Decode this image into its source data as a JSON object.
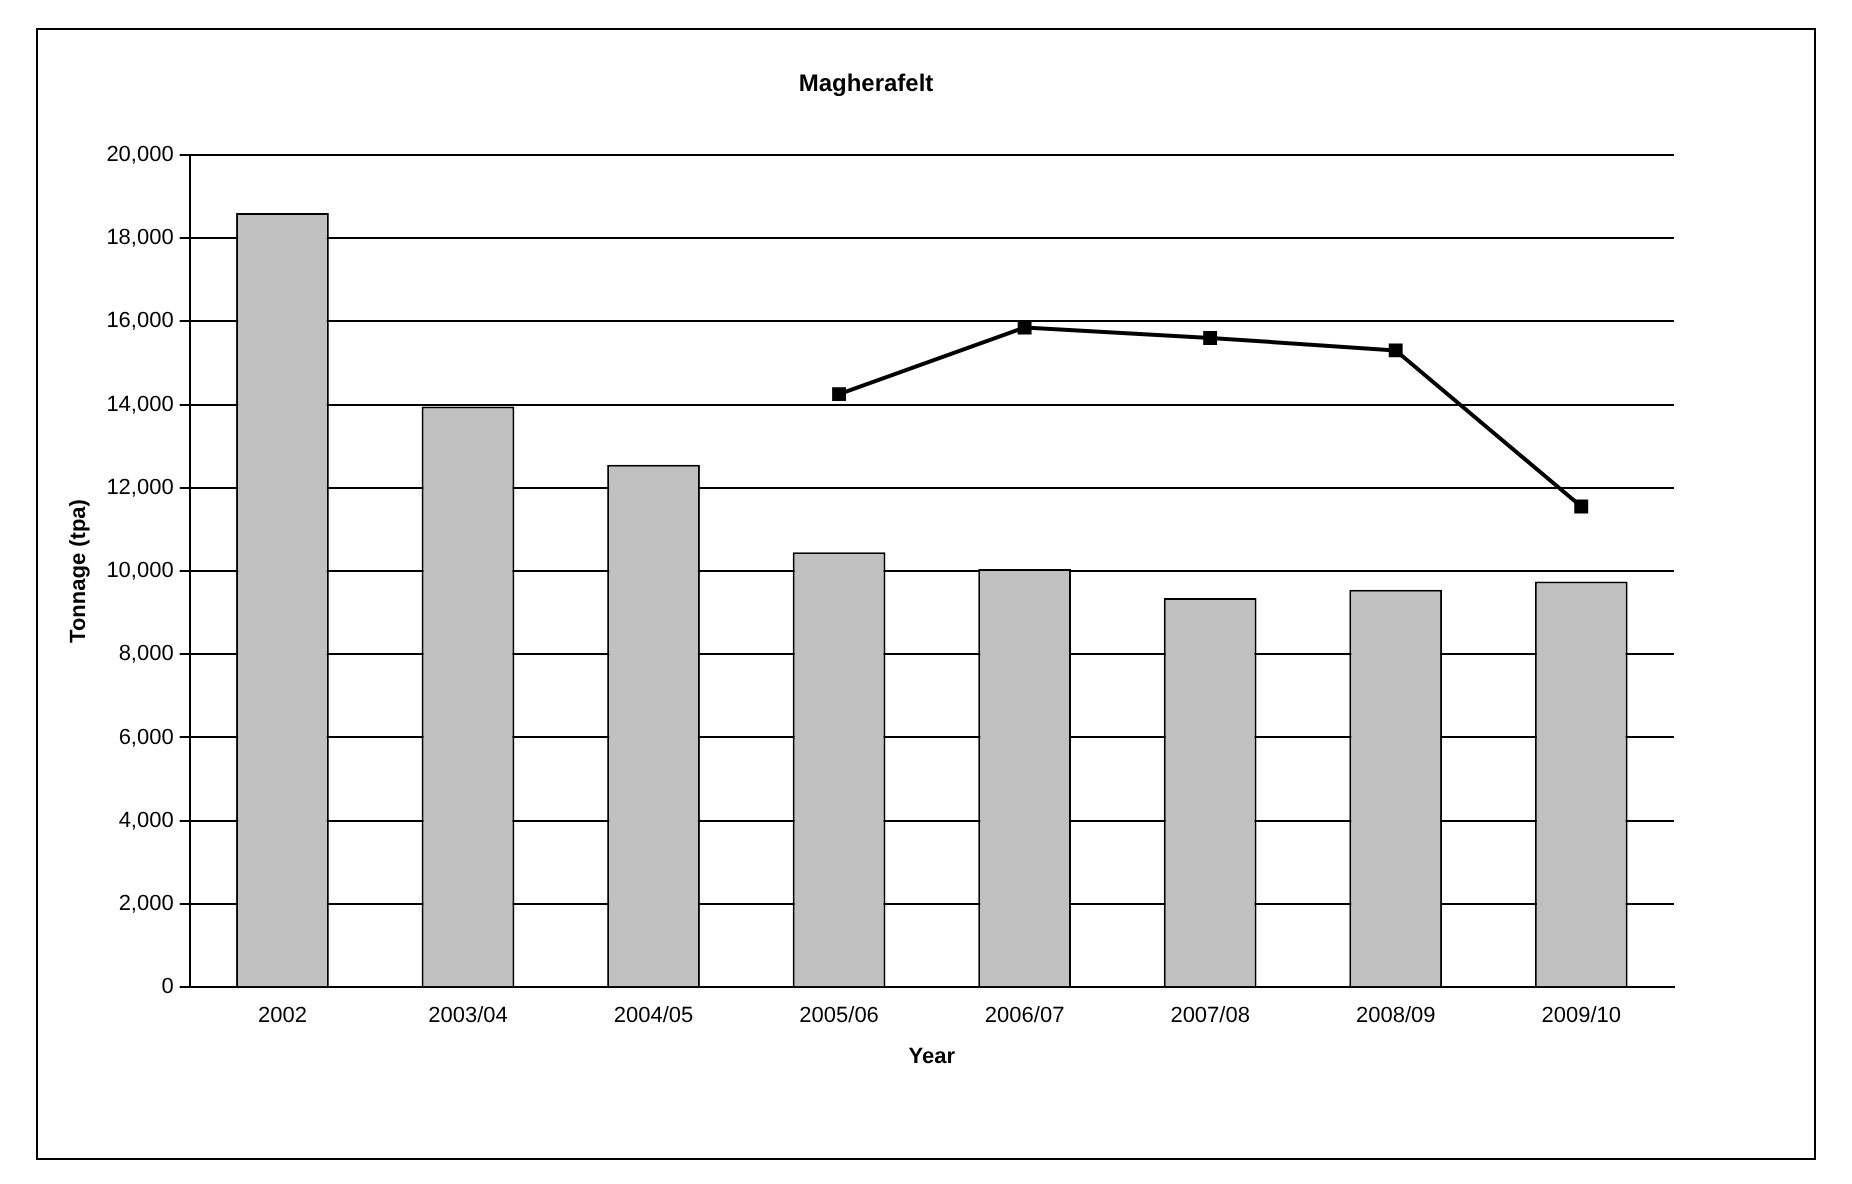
{
  "chart_data": {
    "type": "bar",
    "title": "Magherafelt",
    "xlabel": "Year",
    "ylabel": "Tonnage (tpa)",
    "categories": [
      "2002",
      "2003/04",
      "2004/05",
      "2005/06",
      "2006/07",
      "2007/08",
      "2008/09",
      "2009/10"
    ],
    "series": [
      {
        "color": "#c0c0c0",
        "values": [
          18600,
          13950,
          12550,
          10450,
          10050,
          9350,
          9550,
          9750
        ]
      },
      {
        "type": "line",
        "color": "#000000",
        "marker": "square",
        "values": [
          null,
          null,
          null,
          14250,
          15850,
          15600,
          15300,
          11550
        ]
      }
    ],
    "ylim": [
      0,
      20000
    ],
    "yticks": [
      0,
      {
        "value": 2000,
        "label": "2,000"
      },
      {
        "value": 4000,
        "label": "4,000"
      },
      {
        "value": 6000,
        "label": "6,000"
      },
      {
        "value": 8000,
        "label": "8,000"
      },
      {
        "value": 10000,
        "label": "10,000"
      },
      {
        "value": 12000,
        "label": "12,000"
      },
      {
        "value": 14000,
        "label": "14,000"
      },
      {
        "value": 16000,
        "label": "16,000"
      },
      {
        "value": 18000,
        "label": "18,000"
      },
      {
        "value": 20000,
        "label": "20,000"
      }
    ],
    "grid": "y",
    "legend": false
  }
}
